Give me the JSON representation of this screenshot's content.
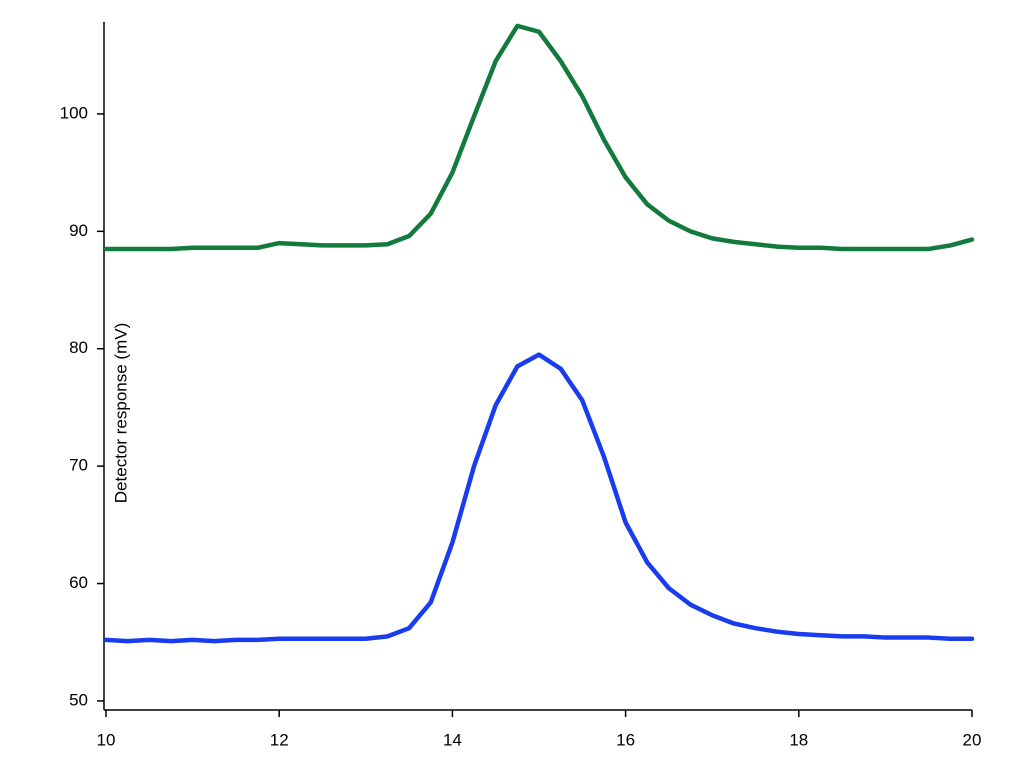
{
  "chart_data": {
    "type": "line",
    "y_label": "Detector response (mV)",
    "x": [
      10,
      10.25,
      10.5,
      10.75,
      11,
      11.25,
      11.5,
      11.75,
      12,
      12.25,
      12.5,
      12.75,
      13,
      13.25,
      13.5,
      13.75,
      14,
      14.25,
      14.5,
      14.75,
      15,
      15.25,
      15.5,
      15.75,
      16,
      16.25,
      16.5,
      16.75,
      17,
      17.25,
      17.5,
      17.75,
      18,
      18.25,
      18.5,
      18.75,
      19,
      19.25,
      19.5,
      19.75,
      20
    ],
    "series": [
      {
        "color": "#137a3e",
        "values": [
          88.5,
          88.5,
          88.5,
          88.5,
          88.6,
          88.6,
          88.6,
          88.6,
          89.0,
          88.9,
          88.8,
          88.8,
          88.8,
          88.9,
          89.6,
          91.5,
          95.0,
          99.8,
          104.5,
          107.5,
          107.0,
          104.5,
          101.5,
          97.8,
          94.6,
          92.3,
          90.9,
          90.0,
          89.4,
          89.1,
          88.9,
          88.7,
          88.6,
          88.6,
          88.5,
          88.5,
          88.5,
          88.5,
          88.5,
          88.8,
          89.3
        ]
      },
      {
        "color": "#1a3cf0",
        "values": [
          55.2,
          55.1,
          55.2,
          55.1,
          55.2,
          55.1,
          55.2,
          55.2,
          55.3,
          55.3,
          55.3,
          55.3,
          55.3,
          55.5,
          56.2,
          58.4,
          63.5,
          70.0,
          75.2,
          78.5,
          79.5,
          78.3,
          75.6,
          70.8,
          65.2,
          61.8,
          59.6,
          58.2,
          57.3,
          56.6,
          56.2,
          55.9,
          55.7,
          55.6,
          55.5,
          55.5,
          55.4,
          55.4,
          55.4,
          55.3,
          55.3
        ]
      }
    ],
    "xlim": [
      10,
      20
    ],
    "xticks": [
      10,
      12,
      14,
      16,
      18,
      20
    ],
    "ylim": [
      49.23,
      107.83
    ],
    "yticks": [
      50,
      60,
      70,
      80,
      90,
      100
    ],
    "grid": false
  }
}
